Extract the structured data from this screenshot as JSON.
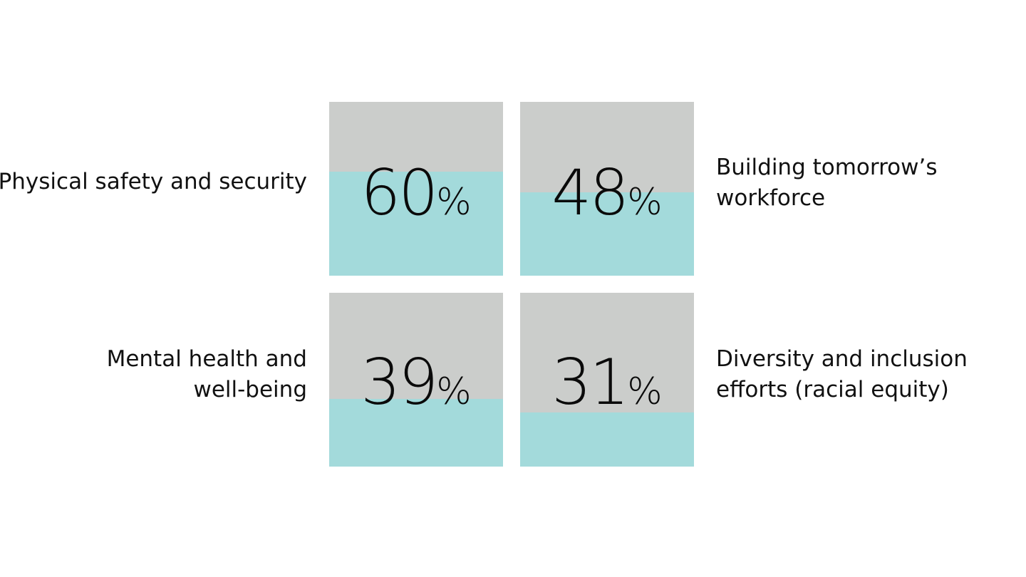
{
  "chart_data": {
    "type": "other",
    "title": "",
    "colors": {
      "track": "#cbcdcb",
      "fill": "#a3dadb"
    },
    "items": [
      {
        "label_lines": [
          "Physical safety and security"
        ],
        "value": 60,
        "unit": "%"
      },
      {
        "label_lines": [
          "Building tomorrow’s",
          "workforce"
        ],
        "value": 48,
        "unit": "%"
      },
      {
        "label_lines": [
          "Mental health and",
          "well-being"
        ],
        "value": 39,
        "unit": "%"
      },
      {
        "label_lines": [
          "Diversity and inclusion",
          "efforts (racial equity)"
        ],
        "value": 31,
        "unit": "%"
      }
    ]
  }
}
